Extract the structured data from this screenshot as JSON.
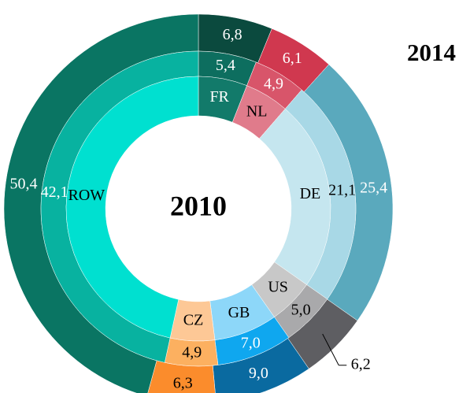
{
  "chart_data": {
    "type": "nested_donut",
    "categories": [
      "FR",
      "NL",
      "DE",
      "US",
      "GB",
      "CZ",
      "ROW"
    ],
    "category_colors": [
      "#127a6a",
      "#e07b8b",
      "#c5e6ef",
      "#c8c8c8",
      "#8dd7f9",
      "#fdc896",
      "#00e0d0"
    ],
    "center_label": "2010",
    "corner_label": "2014",
    "series": [
      {
        "name": "2014",
        "ring": "outer",
        "values": [
          6.8,
          6.1,
          25.4,
          6.2,
          9.0,
          6.3,
          50.4
        ],
        "value_labels": [
          "6,8",
          "6,1",
          "25,4",
          "6,2",
          "9,0",
          "6,3",
          "50,4"
        ],
        "colors": [
          "#0b4a3e",
          "#d0384f",
          "#5aa9bd",
          "#5e5e62",
          "#0a6aa0",
          "#fb8c2c",
          "#0a7563"
        ]
      },
      {
        "name": "2010",
        "ring": "middle",
        "values": [
          5.4,
          4.9,
          21.1,
          5.0,
          7.0,
          4.9,
          42.1
        ],
        "value_labels": [
          "5,4",
          "4,9",
          "21,1",
          "5,0",
          "7,0",
          "4,9",
          "42,1"
        ],
        "colors": [
          "#0d6e5f",
          "#d8556a",
          "#a8d8e6",
          "#a9a9ab",
          "#0fa7ef",
          "#fcb060",
          "#08b2a0"
        ]
      }
    ]
  }
}
